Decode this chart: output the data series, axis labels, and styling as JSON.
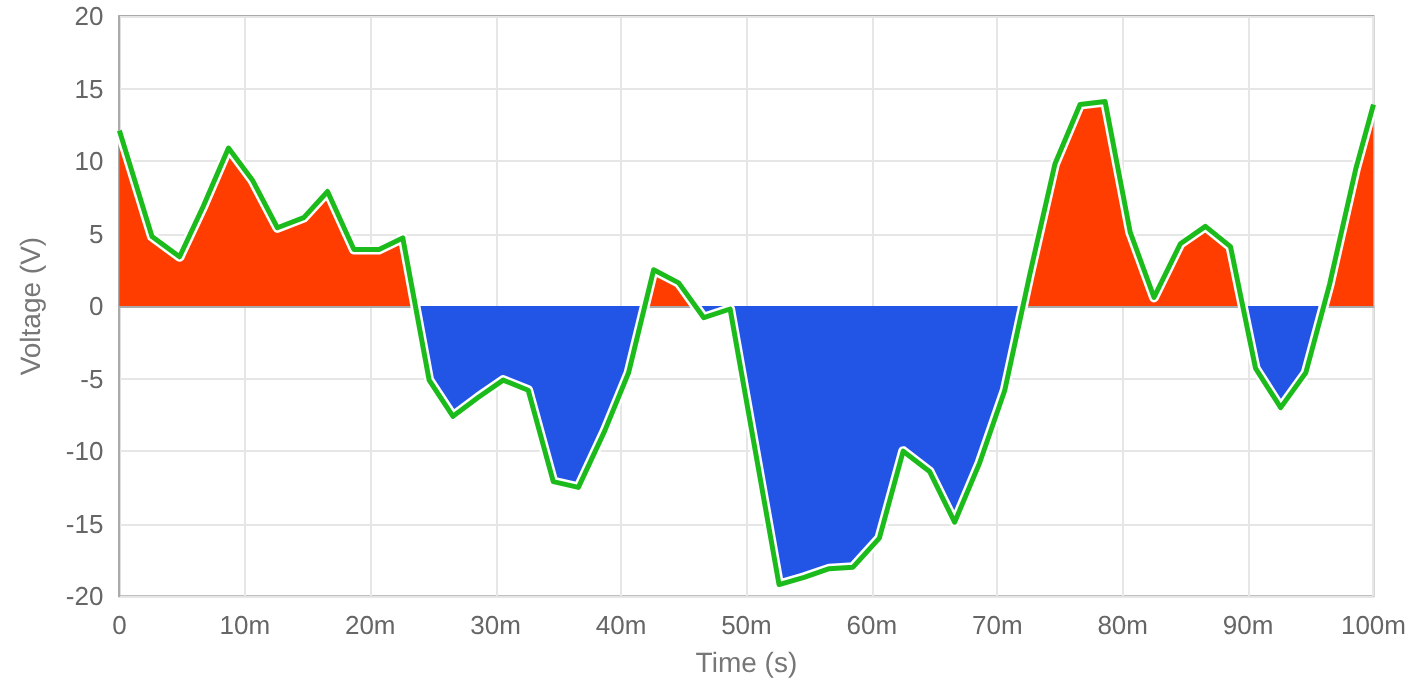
{
  "chart_data": {
    "type": "area",
    "xlabel": "Time (s)",
    "ylabel": "Voltage (V)",
    "x": [
      0,
      2.6,
      4.8,
      6.7,
      8.7,
      10.6,
      12.6,
      14.7,
      16.6,
      18.7,
      20.7,
      22.6,
      24.7,
      26.6,
      28.6,
      30.6,
      32.6,
      34.6,
      36.6,
      38.7,
      40.6,
      42.6,
      44.6,
      46.6,
      48.7,
      52.6,
      54.6,
      56.6,
      58.5,
      60.6,
      62.5,
      64.6,
      66.6,
      68.6,
      70.6,
      72.6,
      74.6,
      76.6,
      78.6,
      80.6,
      82.5,
      84.6,
      86.6,
      88.6,
      90.6,
      92.6,
      94.6,
      96.5,
      98.6,
      100
    ],
    "series": [
      {
        "color": "#1cbb1c",
        "values": [
          12.1,
          4.8,
          3.4,
          6.9,
          10.9,
          8.7,
          5.4,
          6.1,
          7.9,
          3.9,
          3.9,
          4.7,
          -5.1,
          -7.6,
          -6.3,
          -5.1,
          -5.8,
          -12.1,
          -12.5,
          -8.6,
          -4.6,
          2.5,
          1.6,
          -0.8,
          -0.2,
          -19.2,
          -18.7,
          -18.1,
          -18.0,
          -16.0,
          -10.0,
          -11.4,
          -14.9,
          -10.8,
          -5.8,
          2.2,
          9.8,
          13.9,
          14.1,
          5.1,
          0.6,
          4.3,
          5.5,
          4.1,
          -4.3,
          -7.0,
          -4.6,
          1.5,
          9.5,
          13.9
        ],
        "colors": [
          "#ff3d00",
          "#ff3d00",
          "#ff3d00",
          "#ff3d00",
          "#ff3d00",
          "#ff3d00",
          "#ff3d00",
          "#ff3d00",
          "#ff3d00",
          "#ff3d00",
          "#ff3d00",
          "#ff3d00",
          "#2255e6",
          "#2255e6",
          "#2255e6",
          "#2255e6",
          "#2255e6",
          "#2255e6",
          "#2255e6",
          "#2255e6",
          "#2255e6",
          "#ff3d00",
          "#ff3d00",
          "#2255e6",
          "#2255e6",
          "#2255e6",
          "#2255e6",
          "#2255e6",
          "#2255e6",
          "#2255e6",
          "#2255e6",
          "#2255e6",
          "#2255e6",
          "#2255e6",
          "#2255e6",
          "#ff3d00",
          "#ff3d00",
          "#ff3d00",
          "#ff3d00",
          "#ff3d00",
          "#ff3d00",
          "#ff3d00",
          "#ff3d00",
          "#ff3d00",
          "#2255e6",
          "#2255e6",
          "#2255e6",
          "#ff3d00",
          "#ff3d00",
          "#ff3d00"
        ]
      }
    ],
    "xlim": [
      0,
      100
    ],
    "xticks": [
      0,
      {
        "value": 10,
        "label": "10m"
      },
      {
        "value": 20,
        "label": "20m"
      },
      {
        "value": 30,
        "label": "30m"
      },
      {
        "value": 40,
        "label": "40m"
      },
      {
        "value": 50,
        "label": "50m"
      },
      {
        "value": 60,
        "label": "60m"
      },
      {
        "value": 70,
        "label": "70m"
      },
      {
        "value": 80,
        "label": "80m"
      },
      {
        "value": 90,
        "label": "90m"
      },
      {
        "value": 100,
        "label": "100m"
      }
    ],
    "ylim": [
      -20,
      20
    ],
    "yticks": [
      -20,
      -15,
      -10,
      -5,
      0,
      5,
      10,
      15,
      20
    ],
    "grid": true,
    "marker": "none"
  }
}
